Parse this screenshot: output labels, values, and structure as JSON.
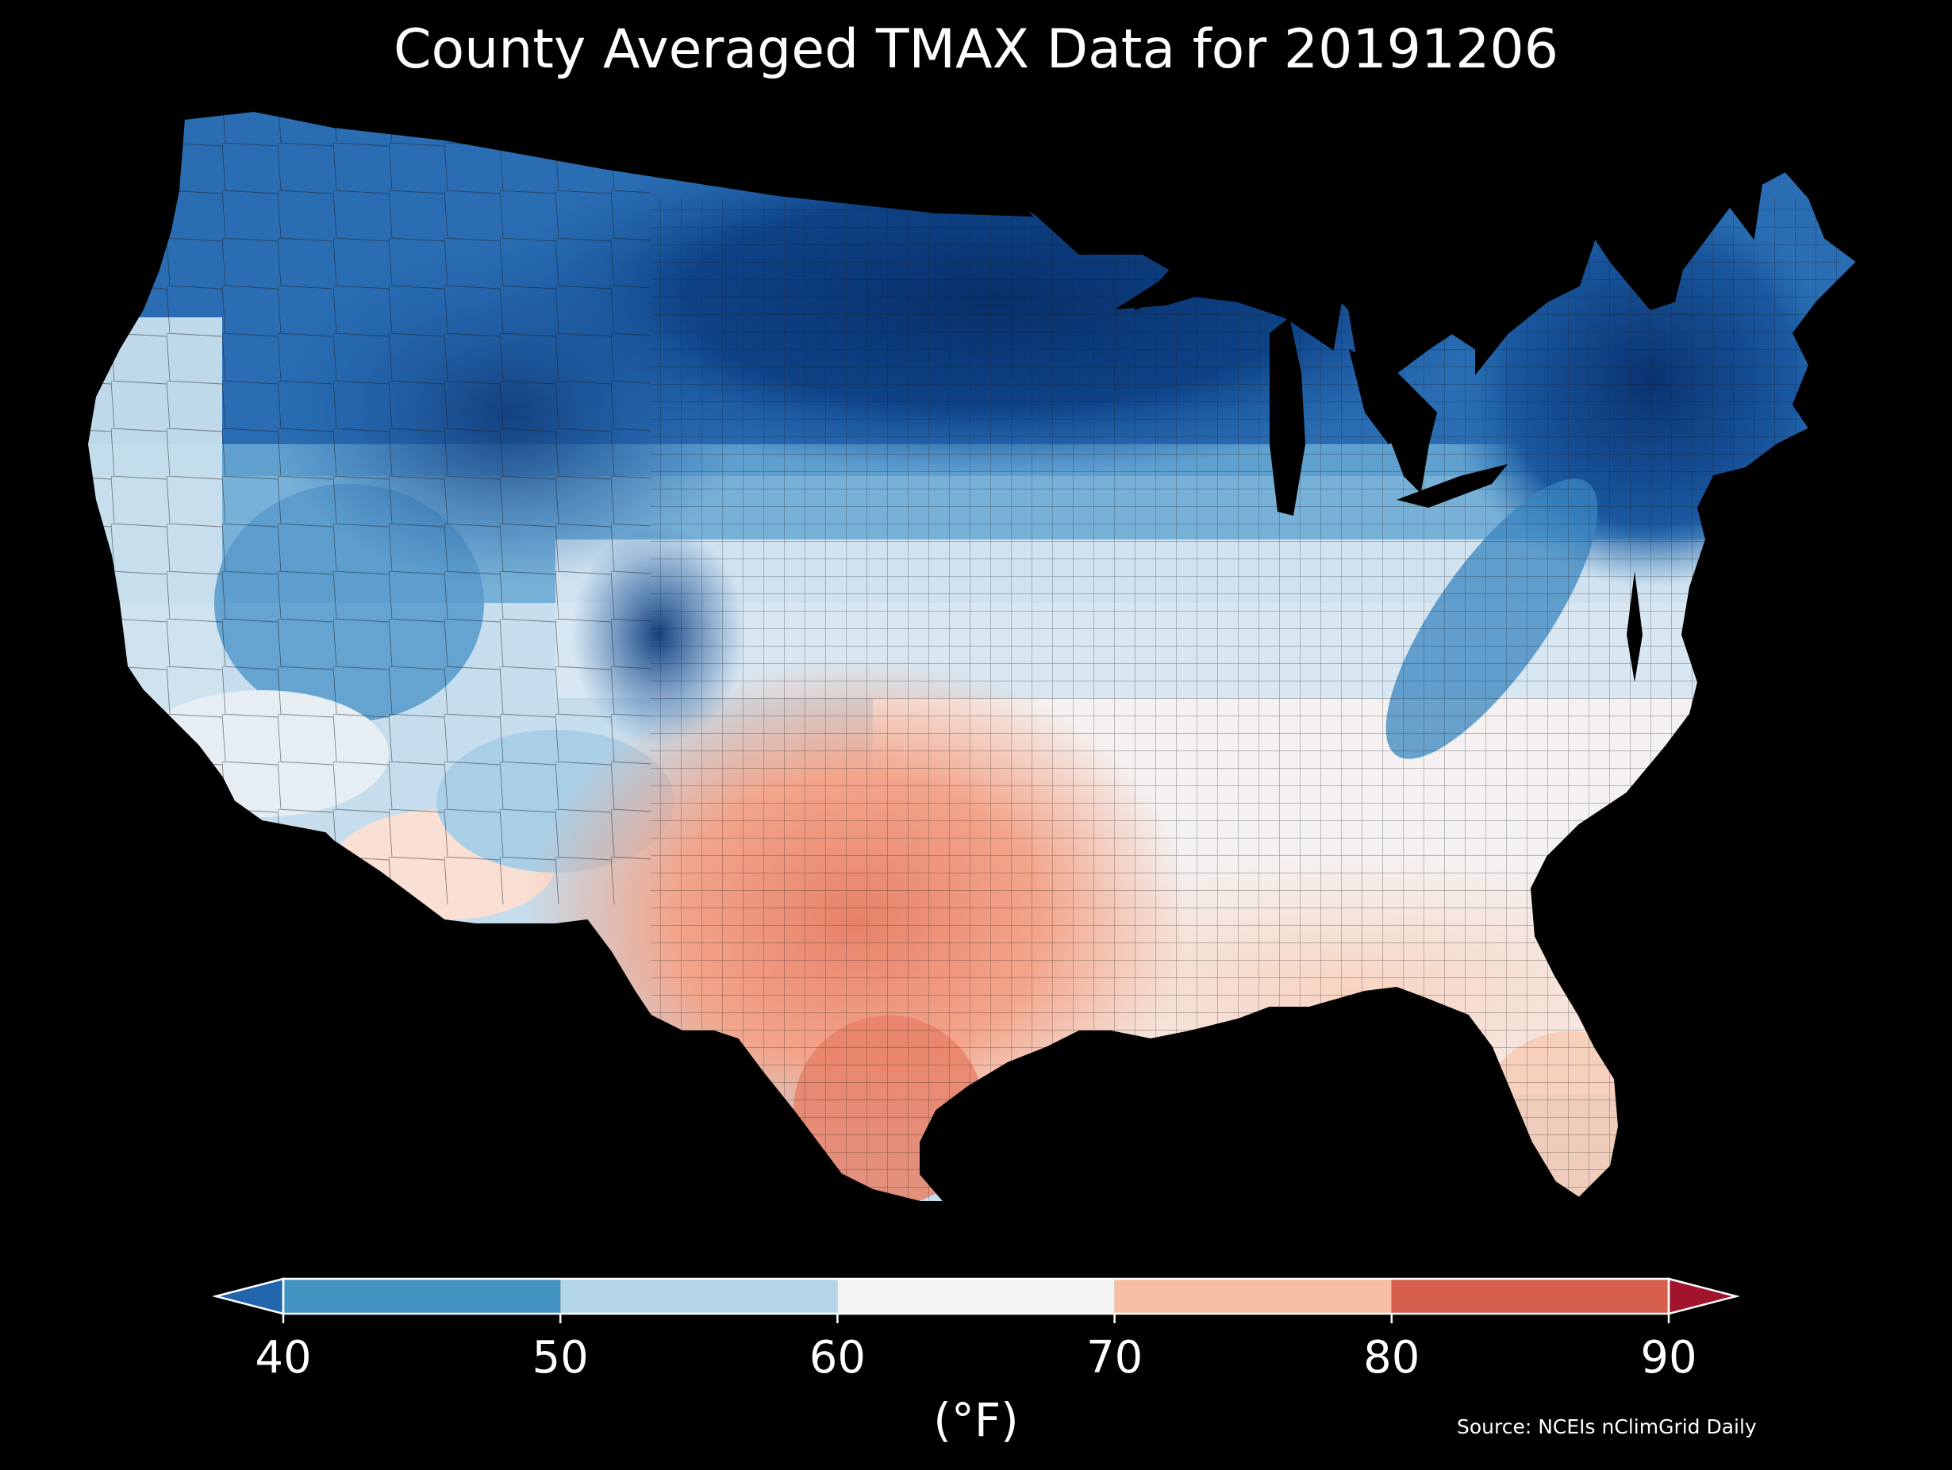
{
  "title": "County Averaged TMAX Data for 20191206",
  "colorbar": {
    "units_label": "(°F)",
    "ticks": [
      {
        "value": 40,
        "label": "40"
      },
      {
        "value": 50,
        "label": "50"
      },
      {
        "value": 60,
        "label": "60"
      },
      {
        "value": 70,
        "label": "70"
      },
      {
        "value": 80,
        "label": "80"
      },
      {
        "value": 90,
        "label": "90"
      }
    ],
    "bins": [
      {
        "from": 40,
        "to": 50,
        "color": "#4393c3"
      },
      {
        "from": 50,
        "to": 60,
        "color": "#b5d5e8"
      },
      {
        "from": 60,
        "to": 70,
        "color": "#f5f5f5"
      },
      {
        "from": 70,
        "to": 80,
        "color": "#f7bea3"
      },
      {
        "from": 80,
        "to": 90,
        "color": "#d6604d"
      }
    ],
    "under_color": "#2166ac",
    "over_color": "#a2142e",
    "extend": "both"
  },
  "source": "Source: NCEIs nClimGrid Daily",
  "map": {
    "region": "Contiguous United States",
    "variable": "TMAX",
    "date": "20191206",
    "aggregation": "county average",
    "background_color": "#000000",
    "border_color": "#1a1a1a"
  }
}
